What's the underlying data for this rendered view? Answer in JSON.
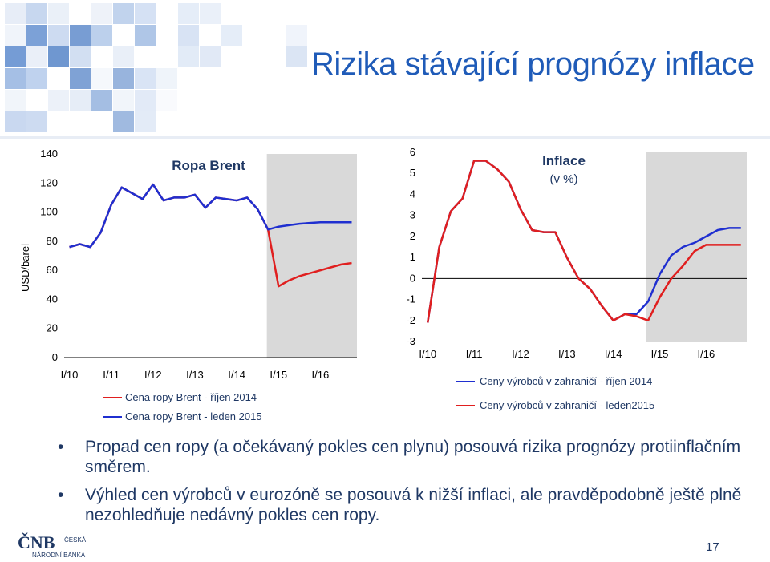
{
  "slide": {
    "title": "Rizika stávající prognózy inflace",
    "page_number": "17",
    "logo_text_line1": "ČESKÁ",
    "logo_text_line2": "NÁRODNÍ BANKA",
    "logo_mark": "ČNB"
  },
  "colors": {
    "accent_blue": "#1f5bb8",
    "series_blue": "#1f2fd0",
    "series_red": "#e01f1f",
    "forecast_shade": "#d9d9d9",
    "text_dark": "#1f3864"
  },
  "bullets": [
    "Propad cen ropy (a očekávaný pokles cen plynu) posouvá rizika prognózy protiinflačním směrem.",
    "Výhled cen výrobců v eurozóně se posouvá k nižší inflaci, ale pravděpodobně ještě plně nezohledňuje nedávný pokles cen ropy."
  ],
  "chart_data": [
    {
      "type": "line",
      "title": "Ropa Brent",
      "ylabel": "USD/barel",
      "ylim": [
        0,
        140
      ],
      "yticks": [
        "0",
        "20",
        "40",
        "60",
        "80",
        "100",
        "120",
        "140"
      ],
      "xticks": [
        "I/10",
        "I/11",
        "I/12",
        "I/13",
        "I/14",
        "I/15",
        "I/16"
      ],
      "forecast_shading": "from Q4 2014 to end of 2016",
      "x": [
        "I/10",
        "II/10",
        "III/10",
        "IV/10",
        "I/11",
        "II/11",
        "III/11",
        "IV/11",
        "I/12",
        "II/12",
        "III/12",
        "IV/12",
        "I/13",
        "II/13",
        "III/13",
        "IV/13",
        "I/14",
        "II/14",
        "III/14",
        "IV/14",
        "I/15",
        "II/15",
        "III/15",
        "IV/15",
        "I/16",
        "II/16",
        "III/16",
        "IV/16"
      ],
      "series": [
        {
          "name": "Cena ropy Brent - říjen 2014",
          "color": "#e01f1f",
          "values": [
            76,
            78,
            76,
            86,
            105,
            117,
            113,
            109,
            119,
            108,
            110,
            110,
            112,
            103,
            110,
            109,
            108,
            110,
            102,
            88,
            49,
            53,
            56,
            58,
            60,
            62,
            64,
            65
          ]
        },
        {
          "name": "Cena ropy Brent - leden 2015",
          "color": "#1f2fd0",
          "values": [
            76,
            78,
            76,
            86,
            105,
            117,
            113,
            109,
            119,
            108,
            110,
            110,
            112,
            103,
            110,
            109,
            108,
            110,
            102,
            88,
            90,
            91,
            92,
            92.5,
            93,
            93,
            93,
            93
          ]
        }
      ],
      "legend_placement": "bottom"
    },
    {
      "type": "line",
      "title": "Inflace",
      "subtitle": "(v %)",
      "ylim": [
        -3,
        6
      ],
      "yticks": [
        "-3",
        "-2",
        "-1",
        "0",
        "1",
        "2",
        "3",
        "4",
        "5",
        "6"
      ],
      "xticks": [
        "I/10",
        "I/11",
        "I/12",
        "I/13",
        "I/14",
        "I/15",
        "I/16"
      ],
      "forecast_shading": "from Q4 2014 to end of 2016",
      "x": [
        "I/10",
        "II/10",
        "III/10",
        "IV/10",
        "I/11",
        "II/11",
        "III/11",
        "IV/11",
        "I/12",
        "II/12",
        "III/12",
        "IV/12",
        "I/13",
        "II/13",
        "III/13",
        "IV/13",
        "I/14",
        "II/14",
        "III/14",
        "IV/14",
        "I/15",
        "II/15",
        "III/15",
        "IV/15",
        "I/16",
        "II/16",
        "III/16",
        "IV/16"
      ],
      "series": [
        {
          "name": "Ceny výrobců v zahraničí - říjen 2014",
          "color": "#1f2fd0",
          "values": [
            -2.1,
            1.5,
            3.2,
            3.8,
            5.6,
            5.6,
            5.2,
            4.6,
            3.3,
            2.3,
            2.2,
            2.2,
            1.0,
            0.0,
            -0.5,
            -1.3,
            -2.0,
            -1.7,
            -1.7,
            -1.1,
            0.2,
            1.1,
            1.5,
            1.7,
            2.0,
            2.3,
            2.4,
            2.4
          ]
        },
        {
          "name": "Ceny výrobců v zahraničí - leden2015",
          "color": "#e01f1f",
          "values": [
            -2.1,
            1.5,
            3.2,
            3.8,
            5.6,
            5.6,
            5.2,
            4.6,
            3.3,
            2.3,
            2.2,
            2.2,
            1.0,
            0.0,
            -0.5,
            -1.3,
            -2.0,
            -1.7,
            -1.8,
            -2.0,
            -0.9,
            0.0,
            0.6,
            1.3,
            1.6,
            1.6,
            1.6,
            1.6
          ]
        }
      ],
      "legend_placement": "bottom"
    }
  ]
}
